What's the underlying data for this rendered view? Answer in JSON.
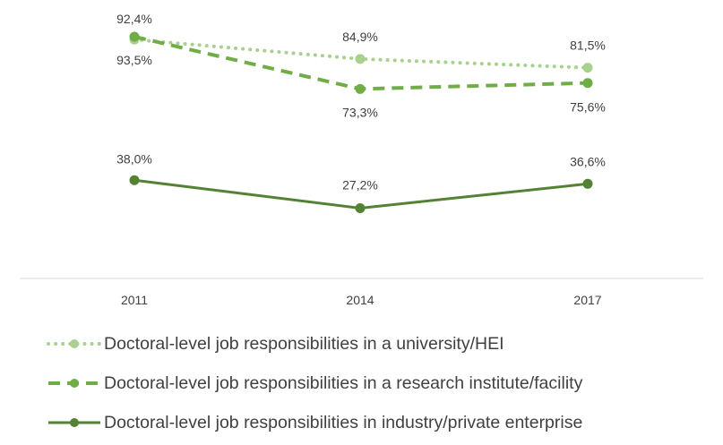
{
  "chart_data": {
    "type": "line",
    "categories": [
      "2011",
      "2014",
      "2017"
    ],
    "ylim": [
      0,
      100
    ],
    "grid": false,
    "legend_position": "bottom",
    "series": [
      {
        "name": "Doctoral-level job responsibilities in a university/HEI",
        "values": [
          92.4,
          84.9,
          81.5
        ],
        "labels": [
          "92,4%",
          "84,9%",
          "81,5%"
        ],
        "color": "#a9d18e",
        "style": "dotted"
      },
      {
        "name": "Doctoral-level job responsibilities in a research institute/facility",
        "values": [
          93.5,
          73.3,
          75.6
        ],
        "labels": [
          "93,5%",
          "73,3%",
          "75,6%"
        ],
        "color": "#70ad47",
        "style": "dashed"
      },
      {
        "name": "Doctoral-level job responsibilities in industry/private enterprise",
        "values": [
          38.0,
          27.2,
          36.6
        ],
        "labels": [
          "38,0%",
          "27,2%",
          "36,6%"
        ],
        "color": "#548235",
        "style": "solid"
      }
    ]
  }
}
